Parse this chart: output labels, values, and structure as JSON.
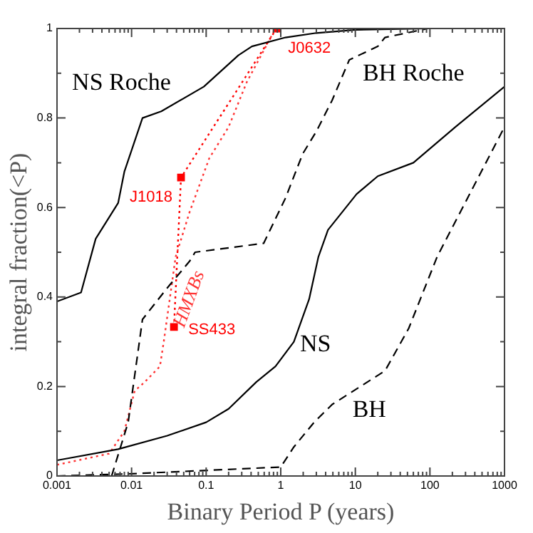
{
  "chart_data": {
    "type": "line",
    "xlabel": "Binary Period P (years)",
    "ylabel": "integral fraction(<P)",
    "log": "x",
    "grid": false,
    "legend": false,
    "xlim": [
      0.001,
      1000
    ],
    "ylim": [
      0,
      1
    ],
    "xticks": [
      0.001,
      {
        "value": 0.002,
        "label": null
      },
      {
        "value": 0.003,
        "label": null
      },
      {
        "value": 0.004,
        "label": null
      },
      {
        "value": 0.005,
        "label": null
      },
      {
        "value": 0.006,
        "label": null
      },
      {
        "value": 0.007,
        "label": null
      },
      {
        "value": 0.008,
        "label": null
      },
      {
        "value": 0.009,
        "label": null
      },
      0.01,
      {
        "value": 0.02,
        "label": null
      },
      {
        "value": 0.03,
        "label": null
      },
      {
        "value": 0.04,
        "label": null
      },
      {
        "value": 0.05,
        "label": null
      },
      {
        "value": 0.06,
        "label": null
      },
      {
        "value": 0.07,
        "label": null
      },
      {
        "value": 0.08,
        "label": null
      },
      {
        "value": 0.09,
        "label": null
      },
      0.1,
      {
        "value": 0.2,
        "label": null
      },
      {
        "value": 0.3,
        "label": null
      },
      {
        "value": 0.4,
        "label": null
      },
      {
        "value": 0.5,
        "label": null
      },
      {
        "value": 0.6,
        "label": null
      },
      {
        "value": 0.7,
        "label": null
      },
      {
        "value": 0.8,
        "label": null
      },
      {
        "value": 0.9,
        "label": null
      },
      1,
      {
        "value": 2,
        "label": null
      },
      {
        "value": 3,
        "label": null
      },
      {
        "value": 4,
        "label": null
      },
      {
        "value": 5,
        "label": null
      },
      {
        "value": 6,
        "label": null
      },
      {
        "value": 7,
        "label": null
      },
      {
        "value": 8,
        "label": null
      },
      {
        "value": 9,
        "label": null
      },
      10,
      {
        "value": 20,
        "label": null
      },
      {
        "value": 30,
        "label": null
      },
      {
        "value": 40,
        "label": null
      },
      {
        "value": 50,
        "label": null
      },
      {
        "value": 60,
        "label": null
      },
      {
        "value": 70,
        "label": null
      },
      {
        "value": 80,
        "label": null
      },
      {
        "value": 90,
        "label": null
      },
      100,
      {
        "value": 200,
        "label": null
      },
      {
        "value": 300,
        "label": null
      },
      {
        "value": 400,
        "label": null
      },
      {
        "value": 500,
        "label": null
      },
      {
        "value": 600,
        "label": null
      },
      {
        "value": 700,
        "label": null
      },
      {
        "value": 800,
        "label": null
      },
      {
        "value": 900,
        "label": null
      },
      1000
    ],
    "yticks": [
      0,
      {
        "value": 0.1,
        "label": null
      },
      0.2,
      {
        "value": 0.3,
        "label": null
      },
      0.4,
      {
        "value": 0.5,
        "label": null
      },
      0.6,
      {
        "value": 0.7,
        "label": null
      },
      0.8,
      {
        "value": 0.9,
        "label": null
      },
      1
    ],
    "series": [
      {
        "name": "NS Roche",
        "color": "#000000",
        "line_style": "solid",
        "marker": "none",
        "x": [
          0.001,
          0.0021,
          0.0033,
          0.0066,
          0.008,
          0.014,
          0.025,
          0.093,
          0.27,
          0.41,
          1.16,
          3,
          10,
          100,
          1000
        ],
        "values": [
          0.39,
          0.41,
          0.53,
          0.61,
          0.68,
          0.8,
          0.815,
          0.87,
          0.94,
          0.96,
          0.98,
          0.99,
          0.997,
          1,
          1
        ]
      },
      {
        "name": "BH Roche",
        "color": "#000000",
        "line_style": "dashed",
        "marker": "none",
        "x": [
          0.0054,
          0.009,
          0.014,
          0.03,
          0.06,
          0.071,
          0.59,
          1.15,
          1.97,
          3,
          4.9,
          8.3,
          20,
          25,
          94,
          1000
        ],
        "values": [
          0,
          0.12,
          0.35,
          0.42,
          0.48,
          0.5,
          0.52,
          0.62,
          0.72,
          0.77,
          0.84,
          0.93,
          0.96,
          0.98,
          1,
          1
        ]
      },
      {
        "name": "NS",
        "color": "#000000",
        "line_style": "solid",
        "marker": "none",
        "x": [
          0.001,
          0.0066,
          0.03,
          0.1,
          0.2,
          0.47,
          0.85,
          1.5,
          2.4,
          3.2,
          4.3,
          10.4,
          20,
          60,
          220,
          1000
        ],
        "values": [
          0.035,
          0.06,
          0.09,
          0.12,
          0.15,
          0.21,
          0.245,
          0.3,
          0.395,
          0.49,
          0.55,
          0.63,
          0.67,
          0.7,
          0.78,
          0.87
        ]
      },
      {
        "name": "BH",
        "color": "#000000",
        "line_style": "dashed",
        "marker": "none",
        "x": [
          0.001,
          0.01,
          1,
          1.5,
          2.8,
          4.9,
          25,
          52,
          125,
          1000
        ],
        "values": [
          0,
          0.005,
          0.02,
          0.065,
          0.12,
          0.16,
          0.235,
          0.33,
          0.49,
          0.78
        ]
      },
      {
        "name": "HMXBs",
        "color": "#ff3333",
        "line_style": "dotted",
        "marker": "none",
        "x": [
          0.001,
          0.005,
          0.008,
          0.011,
          0.015,
          0.024,
          0.027,
          0.039,
          0.06,
          0.11,
          0.2,
          0.35,
          0.85
        ],
        "values": [
          0.025,
          0.05,
          0.1,
          0.19,
          0.21,
          0.245,
          0.3,
          0.49,
          0.59,
          0.71,
          0.78,
          0.88,
          1.0
        ]
      },
      {
        "color": "#ff0000",
        "line_style": "dotted",
        "marker": "square",
        "x": [
          0.037,
          0.046,
          0.88
        ],
        "values": [
          0.333,
          0.667,
          1.0
        ]
      }
    ],
    "annotations": [
      {
        "text": "J0632",
        "x": 0.88,
        "y": 1.0
      },
      {
        "text": "J1018",
        "x": 0.046,
        "y": 0.667
      },
      {
        "text": "SS433",
        "x": 0.037,
        "y": 0.333
      }
    ]
  }
}
